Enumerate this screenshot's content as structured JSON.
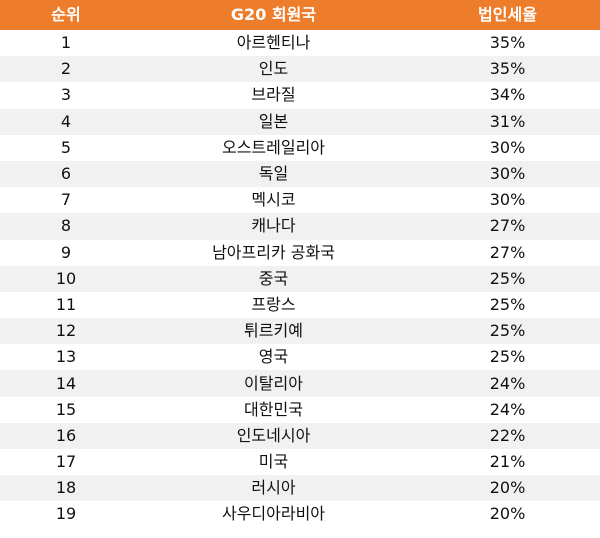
{
  "table": {
    "header_bg": "#ee7d2b",
    "stripe_bg": "#f1f1f1",
    "headers": {
      "rank": "순위",
      "country": "G20 회원국",
      "tax": "법인세율"
    },
    "rows": [
      {
        "rank": "1",
        "country": "아르헨티나",
        "tax": "35%"
      },
      {
        "rank": "2",
        "country": "인도",
        "tax": "35%"
      },
      {
        "rank": "3",
        "country": "브라질",
        "tax": "34%"
      },
      {
        "rank": "4",
        "country": "일본",
        "tax": "31%"
      },
      {
        "rank": "5",
        "country": "오스트레일리아",
        "tax": "30%"
      },
      {
        "rank": "6",
        "country": "독일",
        "tax": "30%"
      },
      {
        "rank": "7",
        "country": "멕시코",
        "tax": "30%"
      },
      {
        "rank": "8",
        "country": "캐나다",
        "tax": "27%"
      },
      {
        "rank": "9",
        "country": "남아프리카 공화국",
        "tax": "27%"
      },
      {
        "rank": "10",
        "country": "중국",
        "tax": "25%"
      },
      {
        "rank": "11",
        "country": "프랑스",
        "tax": "25%"
      },
      {
        "rank": "12",
        "country": "튀르키예",
        "tax": "25%"
      },
      {
        "rank": "13",
        "country": "영국",
        "tax": "25%"
      },
      {
        "rank": "14",
        "country": "이탈리아",
        "tax": "24%"
      },
      {
        "rank": "15",
        "country": "대한민국",
        "tax": "24%"
      },
      {
        "rank": "16",
        "country": "인도네시아",
        "tax": "22%"
      },
      {
        "rank": "17",
        "country": "미국",
        "tax": "21%"
      },
      {
        "rank": "18",
        "country": "러시아",
        "tax": "20%"
      },
      {
        "rank": "19",
        "country": "사우디아라비아",
        "tax": "20%"
      }
    ]
  }
}
